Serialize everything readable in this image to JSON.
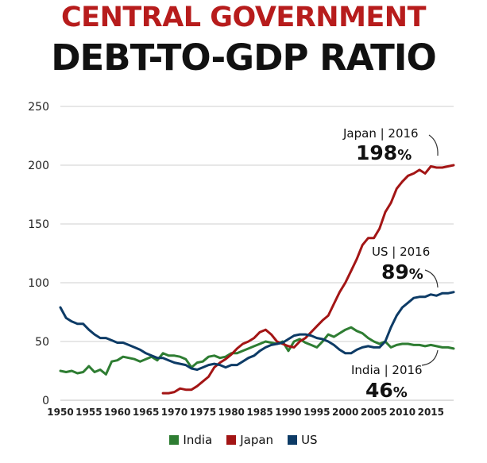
{
  "title_line1": "CENTRAL GOVERNMENT",
  "title_line2": "DEBT-TO-GDP RATIO",
  "colors": {
    "India": "#2e7d32",
    "Japan": "#a31515",
    "US": "#0d3b66",
    "title_red": "#b71c1c"
  },
  "chart_data": {
    "type": "line",
    "title": "CENTRAL GOVERNMENT DEBT-TO-GDP RATIO",
    "xlabel": "",
    "ylabel": "",
    "xlim": [
      1950,
      2019
    ],
    "ylim": [
      0,
      250
    ],
    "yticks": [
      0,
      50,
      100,
      150,
      200,
      250
    ],
    "xticks": [
      1950,
      1955,
      1960,
      1965,
      1970,
      1975,
      1980,
      1985,
      1990,
      1995,
      2000,
      2005,
      2010,
      2015
    ],
    "grid": "horizontal",
    "legend": "bottom",
    "series": [
      {
        "name": "India",
        "x": [
          1950,
          1951,
          1952,
          1953,
          1954,
          1955,
          1956,
          1957,
          1958,
          1959,
          1960,
          1961,
          1962,
          1963,
          1964,
          1965,
          1966,
          1967,
          1968,
          1969,
          1970,
          1971,
          1972,
          1973,
          1974,
          1975,
          1976,
          1977,
          1978,
          1979,
          1980,
          1981,
          1982,
          1983,
          1984,
          1985,
          1986,
          1987,
          1988,
          1989,
          1990,
          1991,
          1992,
          1993,
          1994,
          1995,
          1996,
          1997,
          1998,
          1999,
          2000,
          2001,
          2002,
          2003,
          2004,
          2005,
          2006,
          2007,
          2008,
          2009,
          2010,
          2011,
          2012,
          2013,
          2014,
          2015,
          2016,
          2017,
          2018,
          2019
        ],
        "y": [
          25,
          24,
          25,
          23,
          24,
          29,
          24,
          26,
          22,
          33,
          34,
          37,
          36,
          35,
          33,
          35,
          37,
          34,
          40,
          38,
          38,
          37,
          35,
          28,
          32,
          33,
          37,
          38,
          36,
          37,
          40,
          40,
          42,
          44,
          46,
          48,
          50,
          49,
          48,
          50,
          42,
          50,
          52,
          49,
          47,
          45,
          50,
          56,
          54,
          57,
          60,
          62,
          59,
          57,
          53,
          50,
          48,
          50,
          45,
          47,
          48,
          48,
          47,
          47,
          46,
          47,
          46,
          45,
          45,
          44
        ]
      },
      {
        "name": "Japan",
        "x": [
          1968,
          1969,
          1970,
          1971,
          1972,
          1973,
          1974,
          1975,
          1976,
          1977,
          1978,
          1979,
          1980,
          1981,
          1982,
          1983,
          1984,
          1985,
          1986,
          1987,
          1988,
          1989,
          1990,
          1991,
          1992,
          1993,
          1994,
          1995,
          1996,
          1997,
          1998,
          1999,
          2000,
          2001,
          2002,
          2003,
          2004,
          2005,
          2006,
          2007,
          2008,
          2009,
          2010,
          2011,
          2012,
          2013,
          2014,
          2015,
          2016,
          2017,
          2018,
          2019
        ],
        "y": [
          6,
          6,
          7,
          10,
          9,
          9,
          12,
          16,
          20,
          28,
          32,
          35,
          39,
          44,
          48,
          50,
          53,
          58,
          60,
          56,
          50,
          48,
          46,
          45,
          50,
          53,
          58,
          63,
          68,
          72,
          82,
          92,
          100,
          110,
          120,
          132,
          138,
          138,
          146,
          160,
          168,
          180,
          186,
          191,
          193,
          196,
          193,
          199,
          198,
          198,
          199,
          200
        ]
      },
      {
        "name": "US",
        "x": [
          1950,
          1951,
          1952,
          1953,
          1954,
          1955,
          1956,
          1957,
          1958,
          1959,
          1960,
          1961,
          1962,
          1963,
          1964,
          1965,
          1966,
          1967,
          1968,
          1969,
          1970,
          1971,
          1972,
          1973,
          1974,
          1975,
          1976,
          1977,
          1978,
          1979,
          1980,
          1981,
          1982,
          1983,
          1984,
          1985,
          1986,
          1987,
          1988,
          1989,
          1990,
          1991,
          1992,
          1993,
          1994,
          1995,
          1996,
          1997,
          1998,
          1999,
          2000,
          2001,
          2002,
          2003,
          2004,
          2005,
          2006,
          2007,
          2008,
          2009,
          2010,
          2011,
          2012,
          2013,
          2014,
          2015,
          2016,
          2017,
          2018,
          2019
        ],
        "y": [
          79,
          70,
          67,
          65,
          65,
          60,
          56,
          53,
          53,
          51,
          49,
          49,
          47,
          45,
          43,
          40,
          38,
          36,
          36,
          34,
          32,
          31,
          30,
          27,
          26,
          28,
          30,
          31,
          30,
          28,
          30,
          30,
          33,
          36,
          38,
          42,
          45,
          47,
          48,
          49,
          52,
          55,
          56,
          56,
          55,
          53,
          52,
          50,
          47,
          43,
          40,
          40,
          43,
          45,
          46,
          45,
          45,
          50,
          62,
          72,
          79,
          83,
          87,
          88,
          88,
          90,
          89,
          91,
          91,
          92
        ]
      }
    ],
    "annotations": [
      {
        "series": "Japan",
        "label": "Japan | 2016",
        "value": "198",
        "unit": "%"
      },
      {
        "series": "US",
        "label": "US | 2016",
        "value": "89",
        "unit": "%"
      },
      {
        "series": "India",
        "label": "India | 2016",
        "value": "46",
        "unit": "%"
      }
    ]
  }
}
